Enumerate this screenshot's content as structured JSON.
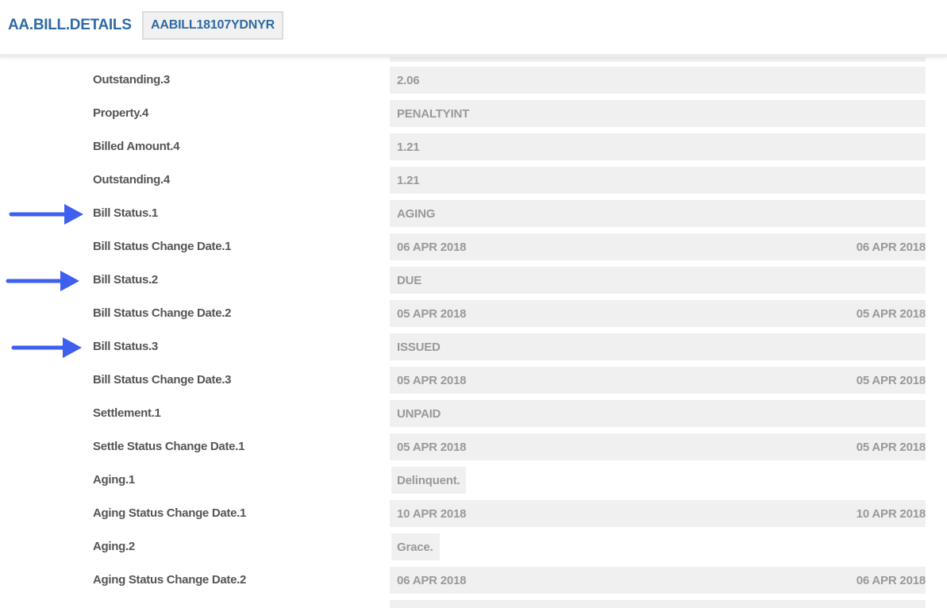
{
  "header": {
    "title": "AA.BILL.DETAILS",
    "record_id": "AABILL18107YDNYR"
  },
  "rows": [
    {
      "label": "Outstanding.3",
      "value": "2.06"
    },
    {
      "label": "Property.4",
      "value": "PENALTYINT"
    },
    {
      "label": "Billed Amount.4",
      "value": "1.21"
    },
    {
      "label": "Outstanding.4",
      "value": "1.21"
    },
    {
      "label": "Bill Status.1",
      "value": "AGING",
      "highlighted": true
    },
    {
      "label": "Bill Status Change Date.1",
      "value": "06 APR 2018",
      "value_right": "06 APR 2018"
    },
    {
      "label": "Bill Status.2",
      "value": "DUE",
      "highlighted": true
    },
    {
      "label": "Bill Status Change Date.2",
      "value": "05 APR 2018",
      "value_right": "05 APR 2018"
    },
    {
      "label": "Bill Status.3",
      "value": "ISSUED",
      "highlighted": true
    },
    {
      "label": "Bill Status Change Date.3",
      "value": "05 APR 2018",
      "value_right": "05 APR 2018"
    },
    {
      "label": "Settlement.1",
      "value": "UNPAID"
    },
    {
      "label": "Settle Status Change Date.1",
      "value": "05 APR 2018",
      "value_right": "05 APR 2018"
    },
    {
      "label": "Aging.1",
      "value": "Delinquent.",
      "short": true
    },
    {
      "label": "Aging Status Change Date.1",
      "value": "10 APR 2018",
      "value_right": "10 APR 2018"
    },
    {
      "label": "Aging.2",
      "value": "Grace.",
      "short": true
    },
    {
      "label": "Aging Status Change Date.2",
      "value": "06 APR 2018",
      "value_right": "06 APR 2018"
    }
  ],
  "annotation": {
    "arrow_color": "#3f5ff0",
    "arrow_icon": "arrow-right-icon"
  }
}
